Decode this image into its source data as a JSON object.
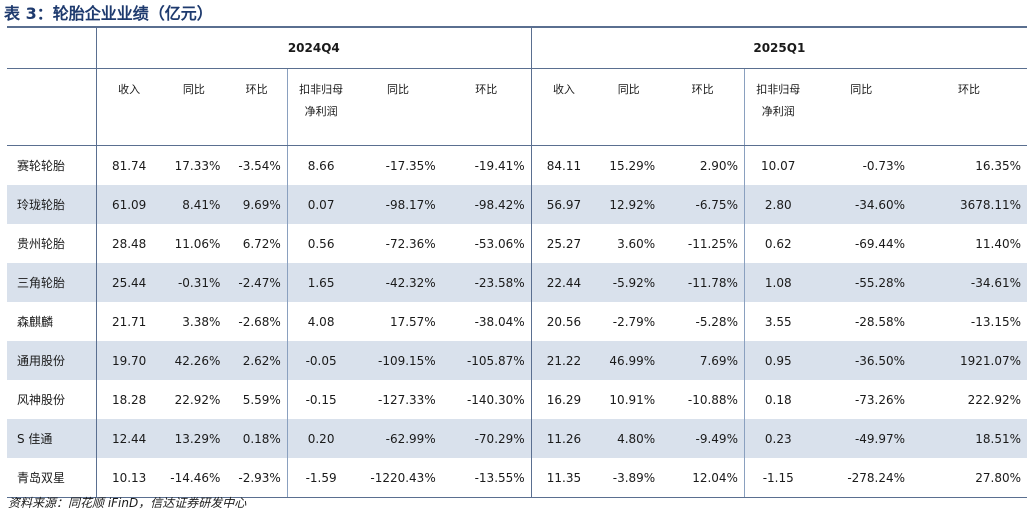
{
  "title": "表 3：轮胎企业业绩（亿元）",
  "periods": [
    "2024Q4",
    "2025Q1"
  ],
  "columns": [
    {
      "line1": "收入",
      "line2": ""
    },
    {
      "line1": "同比",
      "line2": ""
    },
    {
      "line1": "环比",
      "line2": ""
    },
    {
      "line1": "扣非归母",
      "line2": "净利润"
    },
    {
      "line1": "同比",
      "line2": ""
    },
    {
      "line1": "环比",
      "line2": ""
    },
    {
      "line1": "收入",
      "line2": ""
    },
    {
      "line1": "同比",
      "line2": ""
    },
    {
      "line1": "环比",
      "line2": ""
    },
    {
      "line1": "扣非归母",
      "line2": "净利润"
    },
    {
      "line1": "同比",
      "line2": ""
    },
    {
      "line1": "环比",
      "line2": ""
    }
  ],
  "rows": [
    {
      "name": "赛轮轮胎",
      "values": [
        "81.74",
        "17.33%",
        "-3.54%",
        "8.66",
        "-17.35%",
        "-19.41%",
        "84.11",
        "15.29%",
        "2.90%",
        "10.07",
        "-0.73%",
        "16.35%"
      ]
    },
    {
      "name": "玲珑轮胎",
      "values": [
        "61.09",
        "8.41%",
        "9.69%",
        "0.07",
        "-98.17%",
        "-98.42%",
        "56.97",
        "12.92%",
        "-6.75%",
        "2.80",
        "-34.60%",
        "3678.11%"
      ]
    },
    {
      "name": "贵州轮胎",
      "values": [
        "28.48",
        "11.06%",
        "6.72%",
        "0.56",
        "-72.36%",
        "-53.06%",
        "25.27",
        "3.60%",
        "-11.25%",
        "0.62",
        "-69.44%",
        "11.40%"
      ]
    },
    {
      "name": "三角轮胎",
      "values": [
        "25.44",
        "-0.31%",
        "-2.47%",
        "1.65",
        "-42.32%",
        "-23.58%",
        "22.44",
        "-5.92%",
        "-11.78%",
        "1.08",
        "-55.28%",
        "-34.61%"
      ]
    },
    {
      "name": "森麒麟",
      "values": [
        "21.71",
        "3.38%",
        "-2.68%",
        "4.08",
        "17.57%",
        "-38.04%",
        "20.56",
        "-2.79%",
        "-5.28%",
        "3.55",
        "-28.58%",
        "-13.15%"
      ]
    },
    {
      "name": "通用股份",
      "values": [
        "19.70",
        "42.26%",
        "2.62%",
        "-0.05",
        "-109.15%",
        "-105.87%",
        "21.22",
        "46.99%",
        "7.69%",
        "0.95",
        "-36.50%",
        "1921.07%"
      ]
    },
    {
      "name": "风神股份",
      "values": [
        "18.28",
        "22.92%",
        "5.59%",
        "-0.15",
        "-127.33%",
        "-140.30%",
        "16.29",
        "10.91%",
        "-10.88%",
        "0.18",
        "-73.26%",
        "222.92%"
      ]
    },
    {
      "name": "S 佳通",
      "values": [
        "12.44",
        "13.29%",
        "0.18%",
        "0.20",
        "-62.99%",
        "-70.29%",
        "11.26",
        "4.80%",
        "-9.49%",
        "0.23",
        "-49.97%",
        "18.51%"
      ]
    },
    {
      "name": "青岛双星",
      "values": [
        "10.13",
        "-14.46%",
        "-2.93%",
        "-1.59",
        "-1220.43%",
        "-13.55%",
        "11.35",
        "-3.89%",
        "12.04%",
        "-1.15",
        "-278.24%",
        "27.80%"
      ]
    }
  ],
  "source": "资料来源：同花顺 iFinD，信达证券研发中心",
  "colors": {
    "header_text": "#1e3a6e",
    "alt_row": "#d9e1ec",
    "rule": "#5a6f90"
  }
}
